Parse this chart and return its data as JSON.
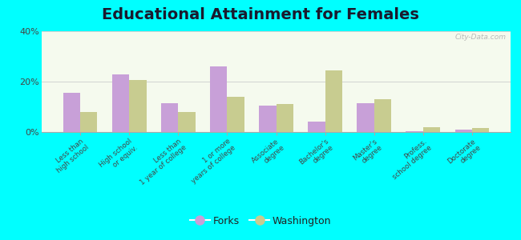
{
  "title": "Educational Attainment for Females",
  "categories": [
    "Less than\nhigh school",
    "High school\nor equiv.",
    "Less than\n1 year of college",
    "1 or more\nyears of college",
    "Associate\ndegree",
    "Bachelor's\ndegree",
    "Master's\ndegree",
    "Profess.\nschool degree",
    "Doctorate\ndegree"
  ],
  "forks": [
    15.5,
    23.0,
    11.5,
    26.0,
    10.5,
    4.0,
    11.5,
    0.3,
    0.8
  ],
  "washington": [
    8.0,
    20.5,
    8.0,
    14.0,
    11.0,
    24.5,
    13.0,
    2.0,
    1.5
  ],
  "forks_color": "#c8a0d8",
  "washington_color": "#c8cc90",
  "bg_top_color": "#f0f8e8",
  "bg_bottom_color": "#e8f0e0",
  "outer_background": "#00ffff",
  "ylim": [
    0,
    40
  ],
  "yticks": [
    0,
    20,
    40
  ],
  "ytick_labels": [
    "0%",
    "20%",
    "40%"
  ],
  "title_fontsize": 14,
  "watermark": "City-Data.com"
}
